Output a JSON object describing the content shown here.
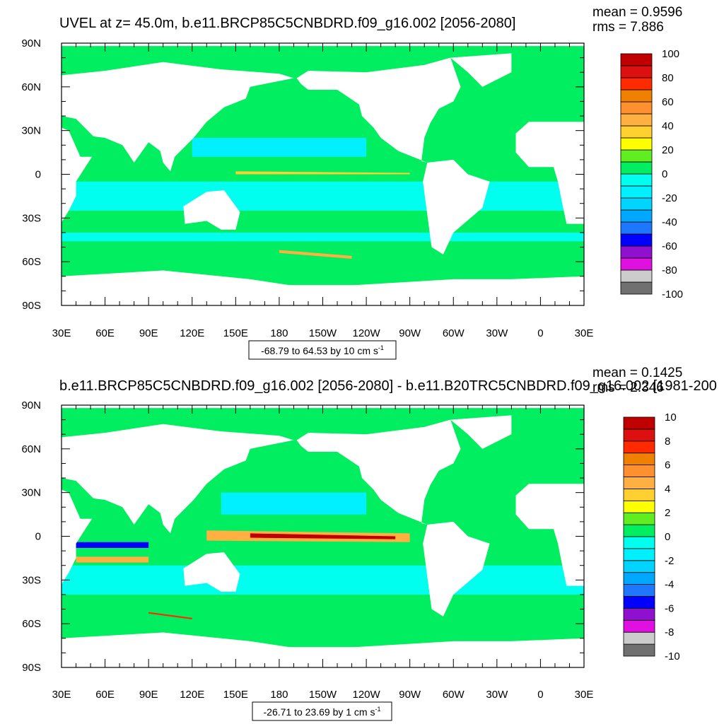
{
  "chart_data": [
    {
      "type": "contour",
      "title": "UVEL at z=  45.0m, b.e11.BRCP85C5CNBDRD.f09_g16.002 [2056-2080]",
      "annotations": [
        "mean = 0.9596",
        "rms = 7.886"
      ],
      "info_label": "-68.79 to 64.53 by 10 cm s",
      "info_label_superscript": "-1",
      "xlim": [
        30,
        390
      ],
      "xticks": [
        {
          "value": 30,
          "label": "30E"
        },
        {
          "value": 60,
          "label": "60E"
        },
        {
          "value": 90,
          "label": "90E"
        },
        {
          "value": 120,
          "label": "120E"
        },
        {
          "value": 150,
          "label": "150E"
        },
        {
          "value": 180,
          "label": "180"
        },
        {
          "value": 210,
          "label": "150W"
        },
        {
          "value": 240,
          "label": "120W"
        },
        {
          "value": 270,
          "label": "90W"
        },
        {
          "value": 300,
          "label": "60W"
        },
        {
          "value": 330,
          "label": "30W"
        },
        {
          "value": 360,
          "label": "0"
        },
        {
          "value": 390,
          "label": "30E"
        }
      ],
      "ylim": [
        -90,
        90
      ],
      "yticks": [
        {
          "value": 90,
          "label": "90N"
        },
        {
          "value": 60,
          "label": "60N"
        },
        {
          "value": 30,
          "label": "30N"
        },
        0,
        {
          "value": -30,
          "label": "30S"
        },
        {
          "value": -60,
          "label": "60S"
        },
        {
          "value": -90,
          "label": "90S"
        }
      ],
      "colorbar": {
        "lim": [
          -100,
          100
        ],
        "ticks": [
          100,
          80,
          60,
          40,
          20,
          0,
          -20,
          -40,
          -60,
          -80,
          -100
        ],
        "colors": [
          "#707070",
          "#cccccc",
          "#e010e0",
          "#9010d0",
          "#0000ff",
          "#1e78ff",
          "#00a8ff",
          "#00d4ff",
          "#00f0ff",
          "#00ffee",
          "#00ee60",
          "#60ee20",
          "#ffff00",
          "#ffd030",
          "#ffb040",
          "#ff9030",
          "#f08000",
          "#ff2a00",
          "#dd1010",
          "#c00000"
        ]
      }
    },
    {
      "type": "contour",
      "title": "b.e11.BRCP85C5CNBDRD.f09_g16.002 [2056-2080] - b.e11.B20TRC5CNBDRD.f09_g16.002 [1981-200",
      "annotations": [
        "mean = 0.1425",
        "rms = 2.346"
      ],
      "info_label": "-26.71 to 23.69 by 1 cm s",
      "info_label_superscript": "-1",
      "xlim": [
        30,
        390
      ],
      "xticks": [
        {
          "value": 30,
          "label": "30E"
        },
        {
          "value": 60,
          "label": "60E"
        },
        {
          "value": 90,
          "label": "90E"
        },
        {
          "value": 120,
          "label": "120E"
        },
        {
          "value": 150,
          "label": "150E"
        },
        {
          "value": 180,
          "label": "180"
        },
        {
          "value": 210,
          "label": "150W"
        },
        {
          "value": 240,
          "label": "120W"
        },
        {
          "value": 270,
          "label": "90W"
        },
        {
          "value": 300,
          "label": "60W"
        },
        {
          "value": 330,
          "label": "30W"
        },
        {
          "value": 360,
          "label": "0"
        },
        {
          "value": 390,
          "label": "30E"
        }
      ],
      "ylim": [
        -90,
        90
      ],
      "yticks": [
        {
          "value": 90,
          "label": "90N"
        },
        {
          "value": 60,
          "label": "60N"
        },
        {
          "value": 30,
          "label": "30N"
        },
        0,
        {
          "value": -30,
          "label": "30S"
        },
        {
          "value": -60,
          "label": "60S"
        },
        {
          "value": -90,
          "label": "90S"
        }
      ],
      "colorbar": {
        "lim": [
          -10,
          10
        ],
        "ticks": [
          10,
          8,
          6,
          4,
          2,
          0,
          -2,
          -4,
          -6,
          -8,
          -10
        ],
        "colors": [
          "#707070",
          "#cccccc",
          "#e010e0",
          "#9010d0",
          "#0000ff",
          "#1e78ff",
          "#00a8ff",
          "#00d4ff",
          "#00f0ff",
          "#00ffee",
          "#00ee60",
          "#60ee20",
          "#ffff00",
          "#ffd030",
          "#ffb040",
          "#ff9030",
          "#f08000",
          "#ff2a00",
          "#dd1010",
          "#c00000"
        ]
      }
    }
  ]
}
